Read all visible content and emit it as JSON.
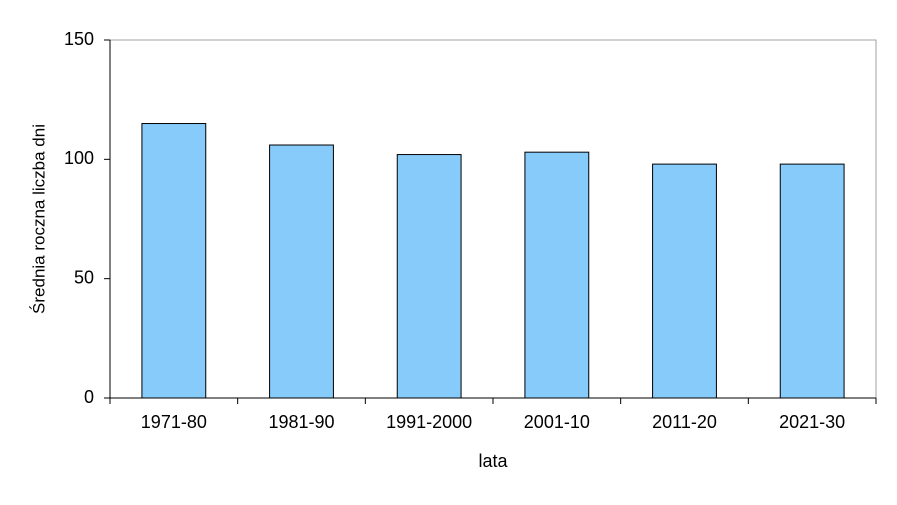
{
  "chart_data": {
    "type": "bar",
    "x_label": "lata",
    "y_label": "Średnia roczna liczba dni",
    "categories": [
      "1971-80",
      "1981-90",
      "1991-2000",
      "2001-10",
      "2011-20",
      "2021-30"
    ],
    "values": [
      115,
      106,
      102,
      103,
      98,
      98
    ],
    "color": "#87cbfa",
    "ylim": [
      0,
      150
    ],
    "yticks": [
      0,
      50,
      100,
      150
    ],
    "grid": false
  }
}
